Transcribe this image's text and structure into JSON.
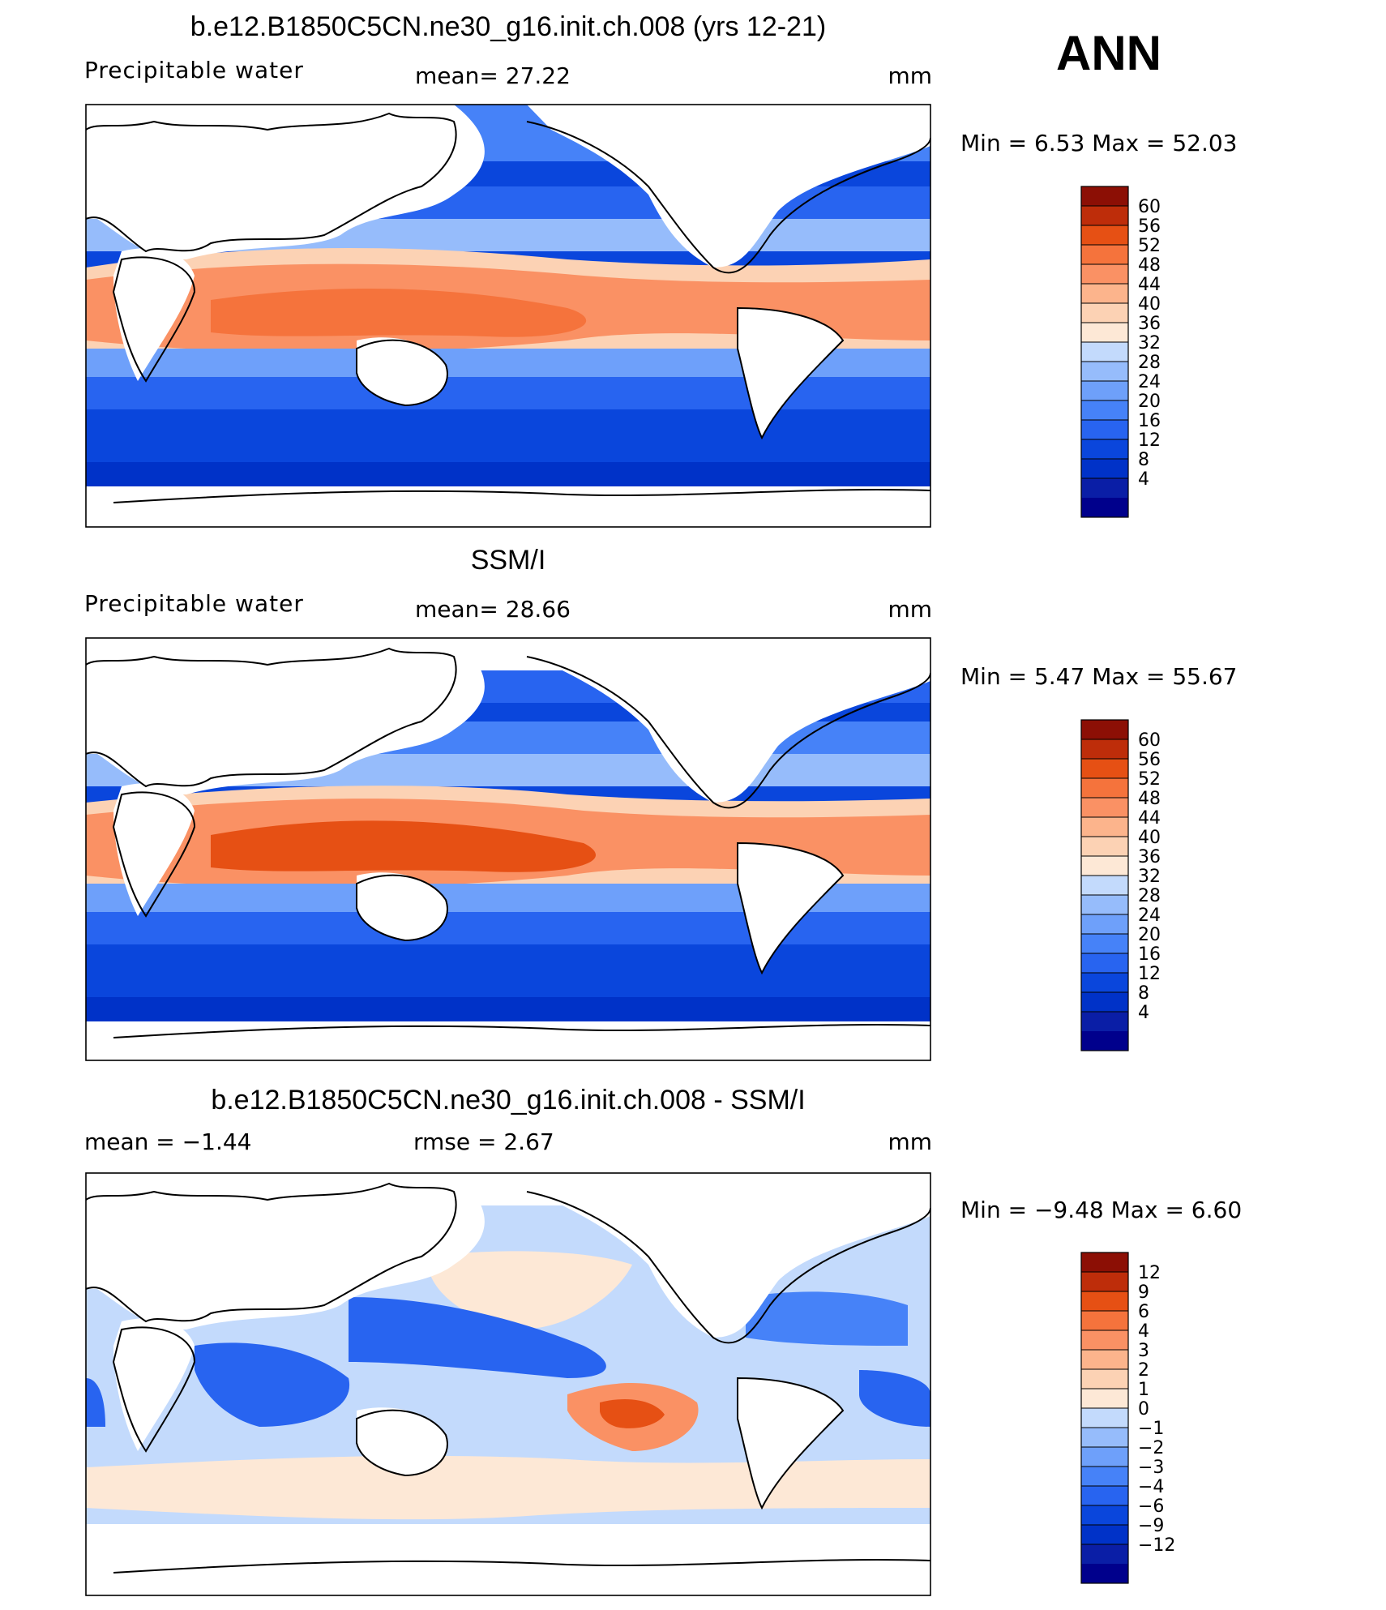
{
  "season": "ANN",
  "units": "mm",
  "colors": {
    "abs_scale": [
      "#00008c",
      "#0a1ea6",
      "#0032c8",
      "#0a46dc",
      "#2864f0",
      "#4682f8",
      "#6ea0fa",
      "#96bcfb",
      "#c3dafc",
      "#fde8d6",
      "#fcd2b4",
      "#fcb48c",
      "#fa9164",
      "#f5733c",
      "#e65014",
      "#be2d0a",
      "#8c0f05"
    ],
    "diff_scale": [
      "#00008c",
      "#0a1ea6",
      "#0032c8",
      "#0a46dc",
      "#2864f0",
      "#4682f8",
      "#6ea0fa",
      "#96bcfb",
      "#c3dafc",
      "#fde8d6",
      "#fcd2b4",
      "#fcb48c",
      "#fa9164",
      "#f5733c",
      "#e65014",
      "#be2d0a",
      "#8c0f05"
    ],
    "land": "#ffffff",
    "coast": "#000000"
  },
  "panels": [
    {
      "title": "b.e12.B1850C5CN.ne30_g16.init.ch.008 (yrs 12-21)",
      "left_label": "Precipitable  water",
      "mid_label": "mean=   27.22",
      "right_label": "mm",
      "minmax": "Min  =     6.53  Max  =    52.03",
      "colorbar_labels": [
        "60",
        "56",
        "52",
        "48",
        "44",
        "40",
        "36",
        "32",
        "28",
        "24",
        "20",
        "16",
        "12",
        "8",
        "4"
      ]
    },
    {
      "title": "SSM/I",
      "left_label": "Precipitable  water",
      "mid_label": "mean=   28.66",
      "right_label": "mm",
      "minmax": "Min  =     5.47  Max  =    55.67",
      "colorbar_labels": [
        "60",
        "56",
        "52",
        "48",
        "44",
        "40",
        "36",
        "32",
        "28",
        "24",
        "20",
        "16",
        "12",
        "8",
        "4"
      ]
    },
    {
      "title": "b.e12.B1850C5CN.ne30_g16.init.ch.008 - SSM/I",
      "left_label": "mean  =   −1.44",
      "mid_label": "rmse  =     2.67",
      "right_label": "mm",
      "minmax": "Min  =   −9.48  Max  =     6.60",
      "colorbar_labels": [
        "12",
        "9",
        "6",
        "4",
        "3",
        "2",
        "1",
        "0",
        "−1",
        "−2",
        "−3",
        "−4",
        "−6",
        "−9",
        "−12"
      ]
    }
  ]
}
